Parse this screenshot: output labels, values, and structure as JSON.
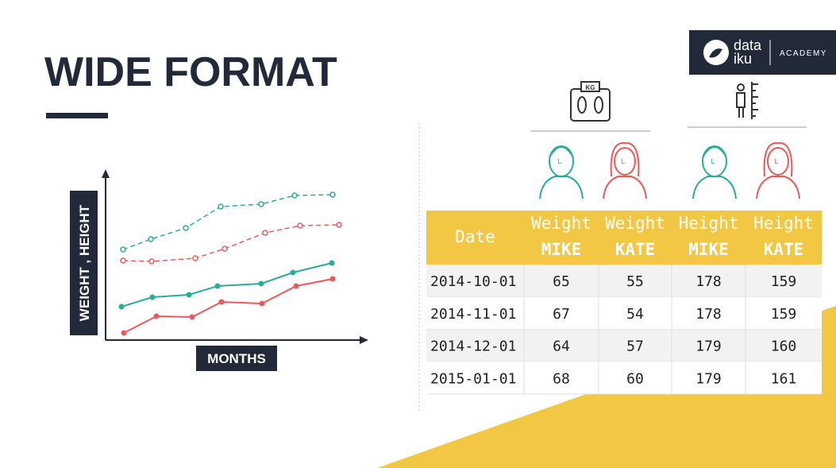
{
  "header": {
    "title": "WIDE FORMAT"
  },
  "logo": {
    "line1": "data",
    "line2": "iku",
    "tag": "ACADEMY"
  },
  "chart": {
    "y_label": "WEIGHT , HEIGHT",
    "x_label": "MONTHS"
  },
  "icons": {
    "scale": "KG",
    "people": [
      "L",
      "L",
      "L",
      "L"
    ]
  },
  "table": {
    "header": [
      "Date",
      {
        "top": "Weight",
        "bottom": "MIKE"
      },
      {
        "top": "Weight",
        "bottom": "KATE"
      },
      {
        "top": "Height",
        "bottom": "MIKE"
      },
      {
        "top": "Height",
        "bottom": "KATE"
      }
    ],
    "rows": [
      [
        "2014-10-01",
        65,
        55,
        178,
        159
      ],
      [
        "2014-11-01",
        67,
        54,
        178,
        159
      ],
      [
        "2014-12-01",
        64,
        57,
        179,
        160
      ],
      [
        "2015-01-01",
        68,
        60,
        179,
        161
      ]
    ]
  }
}
